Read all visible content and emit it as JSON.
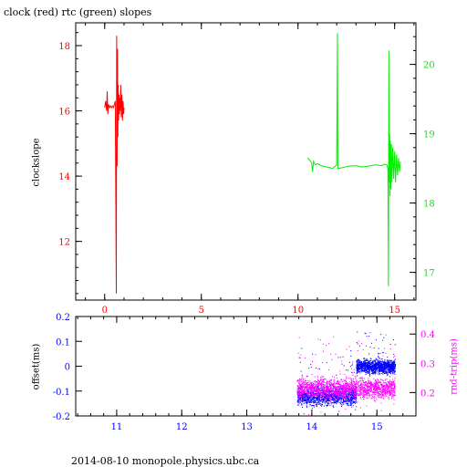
{
  "title": "clock (red) rtc (green) slopes",
  "footer": "2014-08-10  monopole.physics.ubc.ca",
  "colors": {
    "clock": "#ff0000",
    "rtc": "#00ee00",
    "offset": "#0000ff",
    "rnd_trip": "#ff00ff",
    "axis": "#000000"
  },
  "chart_data": [
    {
      "type": "line",
      "name": "slopes",
      "title": "clock (red) rtc (green) slopes",
      "xlabel": "",
      "ylabel": "clockslope",
      "y2label": "",
      "xlim": [
        -1.5,
        16.1
      ],
      "ylim": [
        10.2,
        18.7
      ],
      "y2lim": [
        16.6,
        20.6
      ],
      "xticks": [
        0,
        5,
        10,
        15
      ],
      "yticks": [
        12,
        14,
        16,
        18
      ],
      "y2ticks": [
        17,
        18,
        19,
        20
      ],
      "series": [
        {
          "name": "clock (red)",
          "axis": "left",
          "x": [
            0.0,
            0.05,
            0.1,
            0.13,
            0.16,
            0.2,
            0.25,
            0.3,
            0.35,
            0.4,
            0.45,
            0.5,
            0.55,
            0.6,
            0.62,
            0.64,
            0.66,
            0.68,
            0.7,
            0.72,
            0.74,
            0.76,
            0.78,
            0.8,
            0.83,
            0.86,
            0.89,
            0.92,
            0.95,
            0.98,
            1.0
          ],
          "y": [
            16.1,
            16.3,
            16.0,
            16.6,
            15.9,
            16.2,
            16.1,
            16.15,
            16.1,
            16.15,
            16.1,
            16.2,
            16.3,
            10.4,
            18.3,
            14.3,
            17.9,
            15.2,
            16.8,
            15.7,
            16.5,
            15.9,
            16.4,
            16.0,
            16.8,
            15.8,
            16.5,
            15.7,
            16.3,
            15.9,
            16.1
          ]
        },
        {
          "name": "rtc (green)",
          "axis": "right",
          "x": [
            10.5,
            10.6,
            10.7,
            10.75,
            10.8,
            10.9,
            11.0,
            11.2,
            11.5,
            11.8,
            12.0,
            12.04,
            12.06,
            12.1,
            12.3,
            12.6,
            13.0,
            13.3,
            13.6,
            14.0,
            14.3,
            14.5,
            14.6,
            14.65,
            14.68,
            14.7,
            14.72,
            14.74,
            14.76,
            14.78,
            14.8,
            14.83,
            14.86,
            14.9,
            14.95,
            15.0,
            15.05,
            15.1,
            15.15,
            15.2,
            15.25,
            15.3
          ],
          "y": [
            18.65,
            18.62,
            18.58,
            18.45,
            18.6,
            18.55,
            18.57,
            18.54,
            18.52,
            18.5,
            18.55,
            20.45,
            18.5,
            18.5,
            18.51,
            18.53,
            18.54,
            18.52,
            18.53,
            18.55,
            18.54,
            18.56,
            18.55,
            18.5,
            16.8,
            20.2,
            18.3,
            19.0,
            18.1,
            18.9,
            18.2,
            18.85,
            18.3,
            18.8,
            18.35,
            18.75,
            18.3,
            18.7,
            18.4,
            18.65,
            18.45,
            18.6
          ]
        }
      ]
    },
    {
      "type": "scatter",
      "name": "offset and round trip",
      "xlabel": "",
      "ylabel": "offset(ms)",
      "y2label": "rnd-trip(ms)",
      "xlim": [
        10.37,
        15.6
      ],
      "ylim": [
        -0.2,
        0.2
      ],
      "y2lim": [
        0.12,
        0.46
      ],
      "xticks": [
        11,
        12,
        13,
        14,
        15
      ],
      "yticks": [
        -0.2,
        -0.1,
        0,
        0.1,
        0.2
      ],
      "y2ticks": [
        0.2,
        0.3,
        0.4
      ],
      "series": [
        {
          "name": "offset",
          "axis": "left",
          "segments": [
            {
              "x_range": [
                13.77,
                14.68
              ],
              "y_center": -0.12,
              "y_spread": 0.05,
              "n": 1400
            },
            {
              "x_range": [
                14.68,
                15.28
              ],
              "y_center": 0.0,
              "y_spread": 0.04,
              "n": 1300
            }
          ]
        },
        {
          "name": "rnd-trip",
          "axis": "right",
          "segments": [
            {
              "x_range": [
                13.77,
                15.28
              ],
              "y_center": 0.215,
              "y_spread": 0.05,
              "n": 2200
            }
          ]
        }
      ]
    }
  ]
}
